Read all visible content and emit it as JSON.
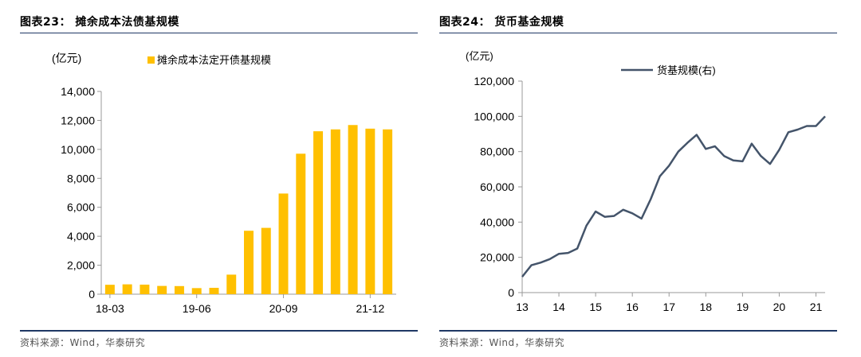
{
  "left": {
    "figure_title": "图表23：  摊余成本法债基规模",
    "source": "资料来源：Wind，华泰研究",
    "chart_data": {
      "type": "bar",
      "unit_label": "(亿元)",
      "series": [
        {
          "name": "摊余成本法定开债基规模",
          "values": [
            650,
            680,
            660,
            570,
            560,
            420,
            440,
            1350,
            4380,
            4580,
            6950,
            9700,
            11250,
            11380,
            11680,
            11430,
            11380
          ]
        }
      ],
      "categories": [
        "18-03",
        "18-06",
        "18-09",
        "18-12",
        "19-03",
        "19-06",
        "19-09",
        "19-12",
        "20-03",
        "20-06",
        "20-09",
        "20-12",
        "21-03",
        "21-06",
        "21-09",
        "21-12",
        "22-03"
      ],
      "x_tick_labels": [
        "18-03",
        "19-06",
        "20-09",
        "21-12"
      ],
      "ylim": [
        0,
        14000
      ],
      "y_ticks": [
        "0",
        "2,000",
        "4,000",
        "6,000",
        "8,000",
        "10,000",
        "12,000",
        "14,000"
      ],
      "colors": {
        "bar": "#FFC000"
      },
      "legend_position": "top",
      "grid": false
    }
  },
  "right": {
    "figure_title": "图表24：  货币基金规模",
    "source": "资料来源：Wind，华泰研究",
    "chart_data": {
      "type": "line",
      "unit_label": "(亿元)",
      "series": [
        {
          "name": "货基规模(右)",
          "points": [
            [
              13.0,
              9000
            ],
            [
              13.25,
              15500
            ],
            [
              13.5,
              17000
            ],
            [
              13.75,
              19000
            ],
            [
              14.0,
              22000
            ],
            [
              14.25,
              22500
            ],
            [
              14.5,
              25000
            ],
            [
              14.75,
              38000
            ],
            [
              15.0,
              46000
            ],
            [
              15.25,
              43000
            ],
            [
              15.5,
              43500
            ],
            [
              15.75,
              47000
            ],
            [
              16.0,
              45000
            ],
            [
              16.25,
              42000
            ],
            [
              16.5,
              53000
            ],
            [
              16.75,
              66000
            ],
            [
              17.0,
              72000
            ],
            [
              17.25,
              80000
            ],
            [
              17.5,
              85000
            ],
            [
              17.75,
              89500
            ],
            [
              18.0,
              81500
            ],
            [
              18.25,
              83000
            ],
            [
              18.5,
              77500
            ],
            [
              18.75,
              75000
            ],
            [
              19.0,
              74500
            ],
            [
              19.25,
              84500
            ],
            [
              19.5,
              77500
            ],
            [
              19.75,
              73000
            ],
            [
              20.0,
              81000
            ],
            [
              20.25,
              91000
            ],
            [
              20.5,
              92500
            ],
            [
              20.75,
              94500
            ],
            [
              21.0,
              94500
            ],
            [
              21.25,
              100000
            ]
          ]
        }
      ],
      "x_ticks": [
        "13",
        "14",
        "15",
        "16",
        "17",
        "18",
        "19",
        "20",
        "21"
      ],
      "xlim": [
        13,
        21.25
      ],
      "ylim": [
        0,
        120000
      ],
      "y_ticks": [
        "0",
        "20,000",
        "40,000",
        "60,000",
        "80,000",
        "100,000",
        "120,000"
      ],
      "colors": {
        "line": "#44546A"
      },
      "legend_position": "top",
      "grid": false
    }
  }
}
